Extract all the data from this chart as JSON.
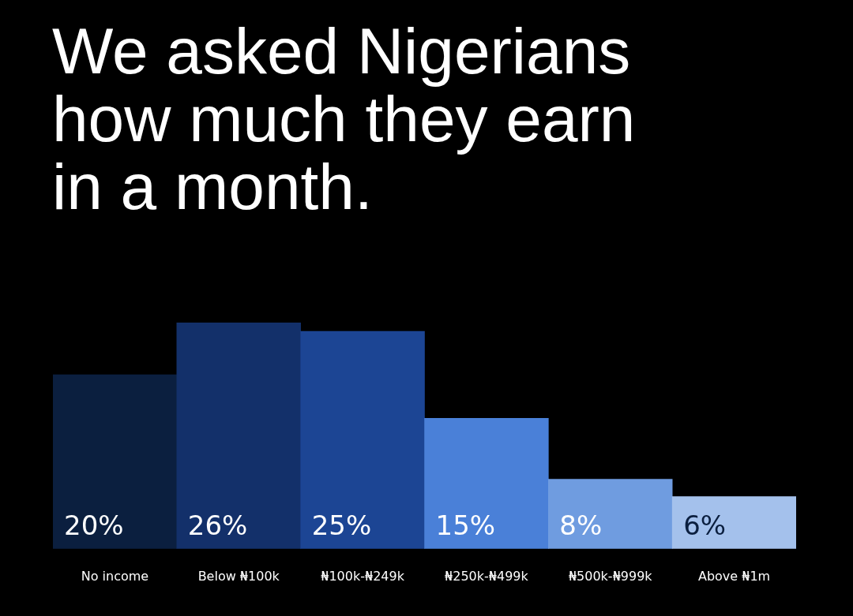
{
  "chart_data": {
    "type": "bar",
    "title": "We asked Nigerians how much they earn in a month.",
    "categories": [
      "No income",
      "Below ₦100k",
      "₦100k-₦249k",
      "₦250k-₦499k",
      "₦500k-₦999k",
      "Above ₦1m"
    ],
    "values": [
      20,
      26,
      25,
      15,
      8,
      6
    ],
    "value_labels": [
      "20%",
      "26%",
      "25%",
      "15%",
      "8%",
      "6%"
    ],
    "colors": [
      "#0b1f3f",
      "#13306a",
      "#1c4594",
      "#4a80d8",
      "#6f9ce0",
      "#a4c1ec"
    ]
  }
}
